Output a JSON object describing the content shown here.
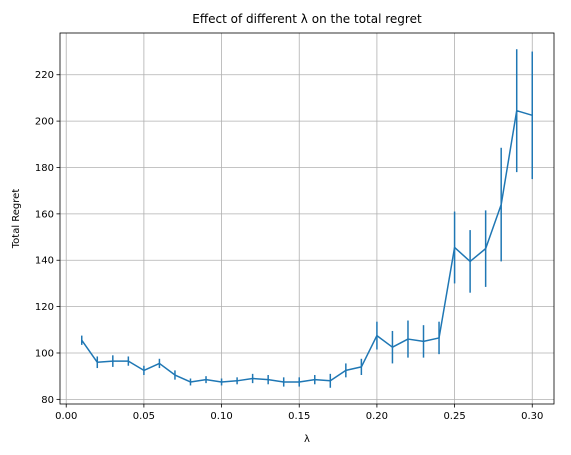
{
  "chart_data": {
    "type": "line",
    "title": "Effect of different λ on the total regret",
    "xlabel": "λ",
    "ylabel": "Total Regret",
    "xlim": [
      -0.004,
      0.314
    ],
    "ylim": [
      78,
      238
    ],
    "xticks": [
      0.0,
      0.05,
      0.1,
      0.15,
      0.2,
      0.25,
      0.3
    ],
    "xtick_labels": [
      "0.00",
      "0.05",
      "0.10",
      "0.15",
      "0.20",
      "0.25",
      "0.30"
    ],
    "yticks": [
      80,
      100,
      120,
      140,
      160,
      180,
      200,
      220
    ],
    "ytick_labels": [
      "80",
      "100",
      "120",
      "140",
      "160",
      "180",
      "200",
      "220"
    ],
    "grid": true,
    "color": "#1f77b4",
    "series": [
      {
        "x": [
          0.01,
          0.02,
          0.03,
          0.04,
          0.05,
          0.06,
          0.07,
          0.08,
          0.09,
          0.1,
          0.11,
          0.12,
          0.13,
          0.14,
          0.15,
          0.16,
          0.17,
          0.18,
          0.19,
          0.2,
          0.21,
          0.22,
          0.23,
          0.24,
          0.25,
          0.26,
          0.27,
          0.28,
          0.29,
          0.3
        ],
        "y": [
          105.5,
          96.0,
          96.5,
          96.5,
          92.5,
          95.5,
          90.5,
          87.5,
          88.5,
          87.5,
          88.0,
          89.0,
          88.5,
          87.5,
          87.5,
          88.5,
          88.0,
          92.5,
          94.0,
          107.5,
          102.5,
          106.0,
          105.0,
          106.5,
          145.5,
          139.5,
          145.0,
          164.0,
          204.5,
          202.5
        ],
        "yerr": [
          2.0,
          2.5,
          2.5,
          2.0,
          2.0,
          2.0,
          2.0,
          1.5,
          1.5,
          1.5,
          1.5,
          2.0,
          2.0,
          2.0,
          2.0,
          2.0,
          3.0,
          3.0,
          3.5,
          6.0,
          7.0,
          8.0,
          7.0,
          7.0,
          15.5,
          13.5,
          16.5,
          24.5,
          26.5,
          27.5
        ]
      }
    ]
  }
}
